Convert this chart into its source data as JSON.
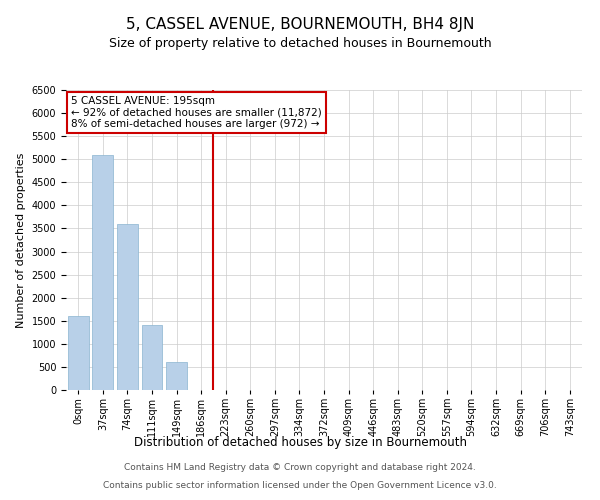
{
  "title": "5, CASSEL AVENUE, BOURNEMOUTH, BH4 8JN",
  "subtitle": "Size of property relative to detached houses in Bournemouth",
  "xlabel": "Distribution of detached houses by size in Bournemouth",
  "ylabel": "Number of detached properties",
  "categories": [
    "0sqm",
    "37sqm",
    "74sqm",
    "111sqm",
    "149sqm",
    "186sqm",
    "223sqm",
    "260sqm",
    "297sqm",
    "334sqm",
    "372sqm",
    "409sqm",
    "446sqm",
    "483sqm",
    "520sqm",
    "557sqm",
    "594sqm",
    "632sqm",
    "669sqm",
    "706sqm",
    "743sqm"
  ],
  "values": [
    1600,
    5100,
    3600,
    1400,
    600,
    0,
    0,
    0,
    0,
    0,
    0,
    0,
    0,
    0,
    0,
    0,
    0,
    0,
    0,
    0,
    0
  ],
  "bar_color": "#b8d0e8",
  "bar_edge_color": "#8ab4d0",
  "vline_color": "#cc0000",
  "vline_x": 5.5,
  "annotation_text": "5 CASSEL AVENUE: 195sqm\n← 92% of detached houses are smaller (11,872)\n8% of semi-detached houses are larger (972) →",
  "annotation_box_color": "#ffffff",
  "annotation_box_edge": "#cc0000",
  "ylim": [
    0,
    6500
  ],
  "yticks": [
    0,
    500,
    1000,
    1500,
    2000,
    2500,
    3000,
    3500,
    4000,
    4500,
    5000,
    5500,
    6000,
    6500
  ],
  "footnote1": "Contains HM Land Registry data © Crown copyright and database right 2024.",
  "footnote2": "Contains public sector information licensed under the Open Government Licence v3.0.",
  "title_fontsize": 11,
  "subtitle_fontsize": 9,
  "xlabel_fontsize": 8.5,
  "ylabel_fontsize": 8,
  "tick_fontsize": 7,
  "annotation_fontsize": 7.5,
  "footnote_fontsize": 6.5,
  "background_color": "#ffffff",
  "grid_color": "#cccccc"
}
